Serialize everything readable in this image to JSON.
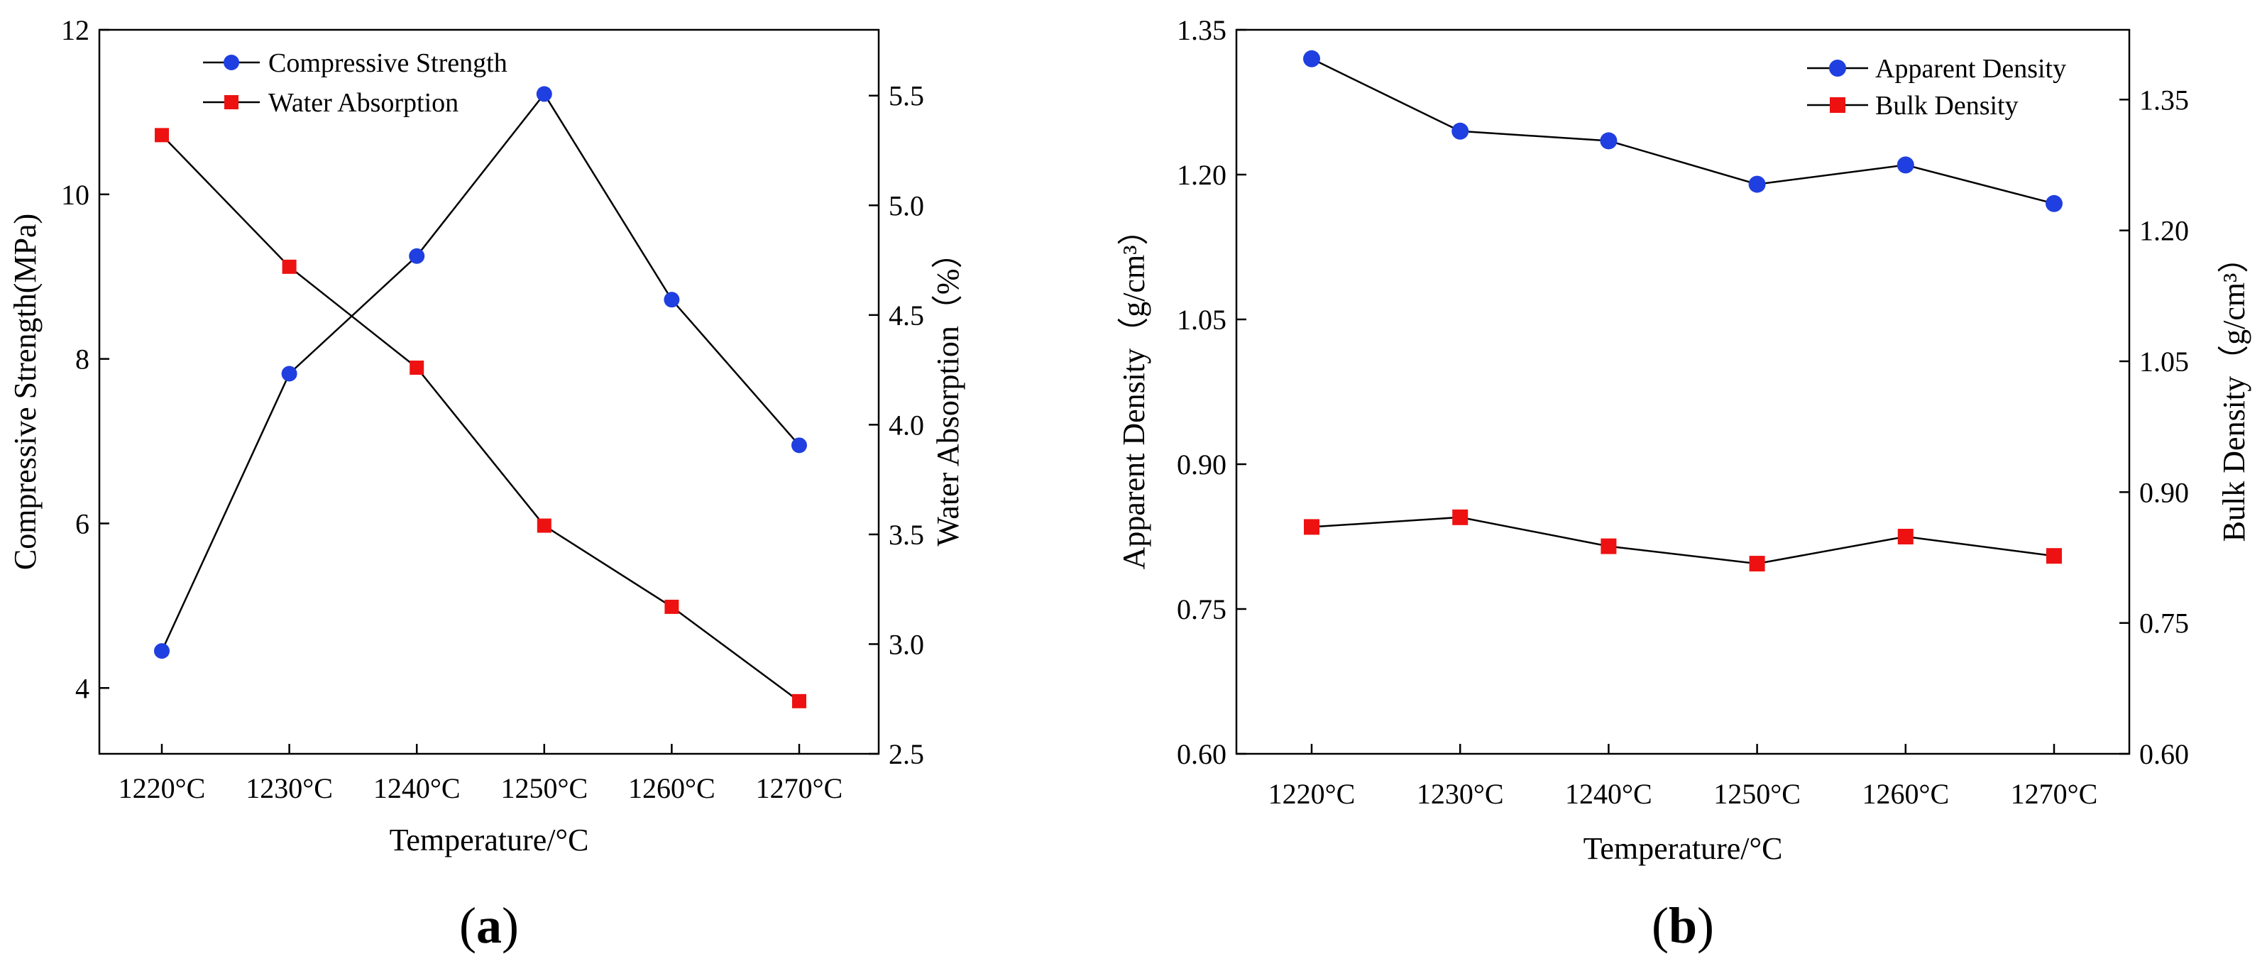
{
  "chart_data": [
    {
      "id": "a",
      "type": "line",
      "panel_label": {
        "open": "(",
        "letter": "a",
        "close": ")"
      },
      "xlabel": "Temperature/°C",
      "ylabel_left": "Compressive Strength(MPa)",
      "ylabel_right": "Water Absorption（%）",
      "categories": [
        "1220°C",
        "1230°C",
        "1240°C",
        "1250°C",
        "1260°C",
        "1270°C"
      ],
      "ylim_left": [
        3.2,
        12
      ],
      "yticks_left": [
        "4",
        "6",
        "8",
        "10",
        "12"
      ],
      "ylim_right": [
        2.5,
        5.8
      ],
      "yticks_right": [
        "2.5",
        "3.0",
        "3.5",
        "4.0",
        "4.5",
        "5.0",
        "5.5"
      ],
      "legend_position": "top-center",
      "series": [
        {
          "name": "Compressive Strength",
          "axis": "left",
          "marker": "circle",
          "color": "#1f3fe0",
          "values": [
            4.45,
            7.82,
            9.25,
            11.22,
            8.72,
            6.95
          ]
        },
        {
          "name": "Water Absorption",
          "axis": "right",
          "marker": "square",
          "color": "#ee1111",
          "values": [
            5.32,
            4.72,
            4.26,
            3.54,
            3.17,
            2.74
          ]
        }
      ]
    },
    {
      "id": "b",
      "type": "line",
      "panel_label": {
        "open": "(",
        "letter": "b",
        "close": ")"
      },
      "xlabel": "Temperature/°C",
      "ylabel_left": "Apparent Density（g/cm³）",
      "ylabel_right": "Bulk Density（g/cm³）",
      "categories": [
        "1220°C",
        "1230°C",
        "1240°C",
        "1250°C",
        "1260°C",
        "1270°C"
      ],
      "ylim_left": [
        0.6,
        1.35
      ],
      "yticks_left": [
        "0.60",
        "0.75",
        "0.90",
        "1.05",
        "1.20",
        "1.35"
      ],
      "ylim_right": [
        0.6,
        1.43
      ],
      "yticks_right": [
        "0.60",
        "0.75",
        "0.90",
        "1.05",
        "1.20",
        "1.35"
      ],
      "legend_position": "top-right",
      "series": [
        {
          "name": "Apparent Density",
          "axis": "left",
          "marker": "circle",
          "color": "#1f3fe0",
          "values": [
            1.32,
            1.245,
            1.235,
            1.19,
            1.21,
            1.17
          ]
        },
        {
          "name": "Bulk Density",
          "axis": "left",
          "marker": "square",
          "color": "#ee1111",
          "values": [
            0.835,
            0.845,
            0.815,
            0.797,
            0.825,
            0.805
          ]
        }
      ]
    }
  ]
}
